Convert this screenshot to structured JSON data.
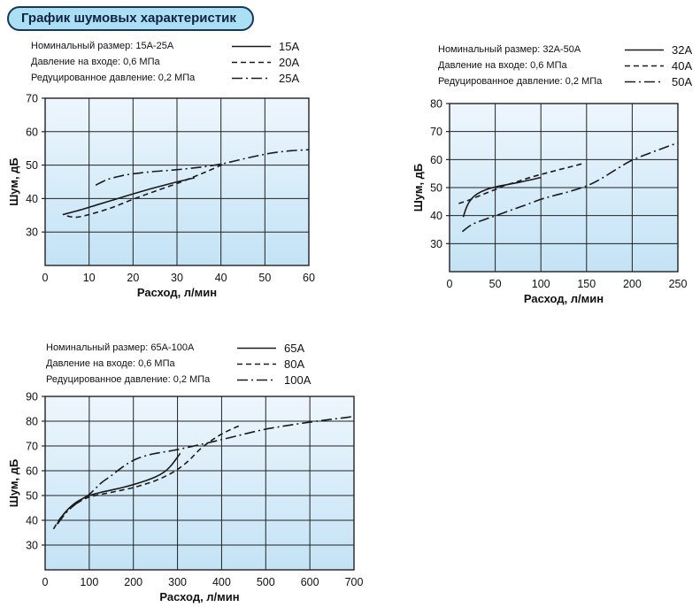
{
  "page_title": "График шумовых характеристик",
  "colors": {
    "pill_bg": "#abdff4",
    "pill_border": "#17375e",
    "plot_top": "#eef6fd",
    "plot_bottom": "#c3e3f5",
    "line_color": "#1a1a1a",
    "grid_color": "#222222"
  },
  "chart_data": [
    {
      "type": "line",
      "legend_info": [
        "Номинальный размер: 15А-25А",
        "Давление на входе: 0,6 МПа",
        "Редуцированное давление: 0,2 МПа"
      ],
      "xlabel": "Расход, л/мин",
      "ylabel": "Шум, дБ",
      "xlim": [
        0,
        60
      ],
      "ylim": [
        20,
        70
      ],
      "xticks": [
        0,
        10,
        20,
        30,
        40,
        50,
        60
      ],
      "yticks": [
        30,
        40,
        50,
        60,
        70
      ],
      "series": [
        {
          "name": "15А",
          "style": "solid",
          "points": [
            [
              4,
              35.2
            ],
            [
              8,
              36.6
            ],
            [
              12,
              38.2
            ],
            [
              16,
              39.8
            ],
            [
              20,
              41.4
            ],
            [
              24,
              42.9
            ],
            [
              28,
              44.3
            ],
            [
              31,
              45.3
            ],
            [
              34,
              46.2
            ]
          ]
        },
        {
          "name": "20А",
          "style": "dashed",
          "points": [
            [
              5,
              34.8
            ],
            [
              7,
              34.4
            ],
            [
              10,
              35.2
            ],
            [
              15,
              37.2
            ],
            [
              20,
              39.8
            ],
            [
              25,
              42.2
            ],
            [
              30,
              44.5
            ],
            [
              34,
              46.6
            ],
            [
              37,
              48.2
            ],
            [
              40,
              50
            ],
            [
              41,
              50.6
            ]
          ]
        },
        {
          "name": "25А",
          "style": "dashdot",
          "points": [
            [
              11.5,
              44
            ],
            [
              14,
              45.6
            ],
            [
              17,
              46.7
            ],
            [
              20,
              47.4
            ],
            [
              24,
              48
            ],
            [
              28,
              48.4
            ],
            [
              32,
              48.9
            ],
            [
              36,
              49.5
            ],
            [
              40,
              50.3
            ],
            [
              44,
              51.5
            ],
            [
              48,
              52.7
            ],
            [
              52,
              53.7
            ],
            [
              56,
              54.3
            ],
            [
              60,
              54.6
            ]
          ]
        }
      ]
    },
    {
      "type": "line",
      "legend_info": [
        "Номинальный размер: 32А-50А",
        "Давление на входе: 0,6 МПа",
        "Редуцированное давление: 0,2 МПа"
      ],
      "xlabel": "Расход, л/мин",
      "ylabel": "Шум, дБ",
      "xlim": [
        0,
        250
      ],
      "ylim": [
        20,
        80
      ],
      "xticks": [
        0,
        50,
        100,
        150,
        200,
        250
      ],
      "yticks": [
        30,
        40,
        50,
        60,
        70,
        80
      ],
      "series": [
        {
          "name": "32А",
          "style": "solid",
          "points": [
            [
              15,
              39.5
            ],
            [
              18,
              42.5
            ],
            [
              21,
              44.6
            ],
            [
              25,
              46.3
            ],
            [
              30,
              47.7
            ],
            [
              40,
              49.3
            ],
            [
              50,
              50.2
            ],
            [
              60,
              50.9
            ],
            [
              75,
              51.8
            ],
            [
              88,
              52.7
            ],
            [
              100,
              53.6
            ]
          ]
        },
        {
          "name": "40А",
          "style": "dashed",
          "points": [
            [
              10,
              44.3
            ],
            [
              20,
              45.4
            ],
            [
              30,
              46.7
            ],
            [
              40,
              48
            ],
            [
              50,
              49.3
            ],
            [
              60,
              50.7
            ],
            [
              75,
              52.2
            ],
            [
              90,
              53.8
            ],
            [
              105,
              55.1
            ],
            [
              120,
              56.4
            ],
            [
              135,
              57.6
            ],
            [
              148,
              58.8
            ]
          ]
        },
        {
          "name": "50А",
          "style": "dashdot",
          "points": [
            [
              14,
              34.3
            ],
            [
              25,
              36.9
            ],
            [
              40,
              38.8
            ],
            [
              50,
              39.9
            ],
            [
              65,
              41.7
            ],
            [
              80,
              43.4
            ],
            [
              100,
              45.8
            ],
            [
              115,
              47.2
            ],
            [
              130,
              48.5
            ],
            [
              150,
              50.6
            ],
            [
              165,
              53
            ],
            [
              185,
              57
            ],
            [
              200,
              59.8
            ],
            [
              220,
              62.4
            ],
            [
              235,
              64.2
            ],
            [
              250,
              66
            ]
          ]
        }
      ]
    },
    {
      "type": "line",
      "legend_info": [
        "Номинальный размер: 65А-100А",
        "Давление на входе: 0,6 МПа",
        "Редуцированное давление: 0,2 МПа"
      ],
      "xlabel": "Расход, л/мин",
      "ylabel": "Шум, дБ",
      "xlim": [
        0,
        700
      ],
      "ylim": [
        20,
        90
      ],
      "xticks": [
        0,
        100,
        200,
        300,
        400,
        500,
        600,
        700
      ],
      "yticks": [
        30,
        40,
        50,
        60,
        70,
        80,
        90
      ],
      "series": [
        {
          "name": "65А",
          "style": "solid",
          "points": [
            [
              27,
              38.5
            ],
            [
              40,
              42
            ],
            [
              55,
              45
            ],
            [
              70,
              47.2
            ],
            [
              85,
              48.8
            ],
            [
              100,
              50
            ],
            [
              125,
              51.2
            ],
            [
              150,
              52.2
            ],
            [
              175,
              53.2
            ],
            [
              200,
              54.4
            ],
            [
              225,
              55.8
            ],
            [
              250,
              57.5
            ],
            [
              270,
              59.5
            ],
            [
              285,
              62
            ],
            [
              300,
              65.5
            ],
            [
              306,
              67
            ]
          ]
        },
        {
          "name": "80А",
          "style": "dashed",
          "points": [
            [
              19,
              36.5
            ],
            [
              35,
              41
            ],
            [
              50,
              43.8
            ],
            [
              70,
              46.6
            ],
            [
              85,
              48.2
            ],
            [
              100,
              49.4
            ],
            [
              125,
              50.4
            ],
            [
              150,
              51.3
            ],
            [
              175,
              52.2
            ],
            [
              200,
              53.2
            ],
            [
              225,
              54.5
            ],
            [
              250,
              56
            ],
            [
              275,
              58
            ],
            [
              300,
              60.5
            ],
            [
              325,
              64
            ],
            [
              350,
              68.5
            ],
            [
              375,
              72
            ],
            [
              400,
              74.8
            ],
            [
              425,
              77
            ],
            [
              445,
              78.5
            ]
          ]
        },
        {
          "name": "100А",
          "style": "dashdot",
          "points": [
            [
              28,
              38.5
            ],
            [
              45,
              42.5
            ],
            [
              60,
              45.2
            ],
            [
              80,
              48
            ],
            [
              100,
              50.5
            ],
            [
              115,
              53
            ],
            [
              130,
              55.5
            ],
            [
              150,
              58
            ],
            [
              170,
              60.8
            ],
            [
              190,
              63.2
            ],
            [
              210,
              65
            ],
            [
              235,
              66.4
            ],
            [
              260,
              67.3
            ],
            [
              290,
              68.2
            ],
            [
              320,
              69.3
            ],
            [
              350,
              70.5
            ],
            [
              380,
              71.7
            ],
            [
              410,
              73
            ],
            [
              440,
              74.3
            ],
            [
              470,
              75.6
            ],
            [
              500,
              76.8
            ],
            [
              540,
              78
            ],
            [
              580,
              79.1
            ],
            [
              620,
              80.1
            ],
            [
              660,
              81
            ],
            [
              700,
              81.9
            ]
          ]
        }
      ]
    }
  ]
}
